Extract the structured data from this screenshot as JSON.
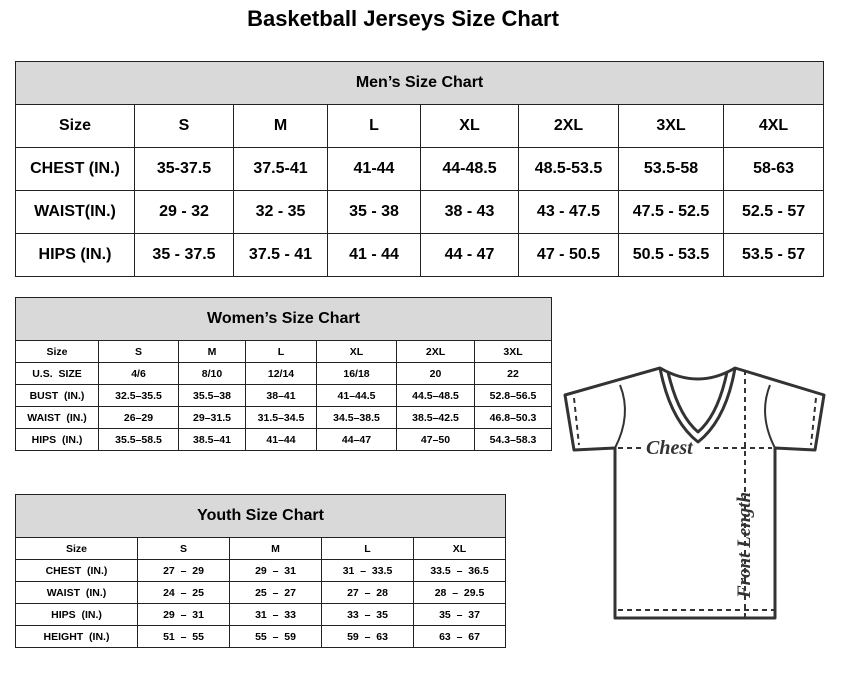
{
  "title": "Basketball Jerseys Size Chart",
  "men": {
    "title": "Men’s Size Chart",
    "rows": [
      [
        "Size",
        "S",
        "M",
        "L",
        "XL",
        "2XL",
        "3XL",
        "4XL"
      ],
      [
        "CHEST (IN.)",
        "35-37.5",
        "37.5-41",
        "41-44",
        "44-48.5",
        "48.5-53.5",
        "53.5-58",
        "58-63"
      ],
      [
        "WAIST(IN.)",
        "29 - 32",
        "32 - 35",
        "35 - 38",
        "38 - 43",
        "43 - 47.5",
        "47.5 - 52.5",
        "52.5 - 57"
      ],
      [
        "HIPS (IN.)",
        "35 - 37.5",
        "37.5 - 41",
        "41 - 44",
        "44 - 47",
        "47 - 50.5",
        "50.5 - 53.5",
        "53.5 - 57"
      ]
    ]
  },
  "women": {
    "title": "Women’s Size Chart",
    "rows": [
      [
        "Size",
        "S",
        "M",
        "L",
        "XL",
        "2XL",
        "3XL"
      ],
      [
        "U.S.  SIZE",
        "4/6",
        "8/10",
        "12/14",
        "16/18",
        "20",
        "22"
      ],
      [
        "BUST  (IN.)",
        "32.5–35.5",
        "35.5–38",
        "38–41",
        "41–44.5",
        "44.5–48.5",
        "52.8–56.5"
      ],
      [
        "WAIST  (IN.)",
        "26–29",
        "29–31.5",
        "31.5–34.5",
        "34.5–38.5",
        "38.5–42.5",
        "46.8–50.3"
      ],
      [
        "HIPS  (IN.)",
        "35.5–58.5",
        "38.5–41",
        "41–44",
        "44–47",
        "47–50",
        "54.3–58.3"
      ]
    ]
  },
  "youth": {
    "title": "Youth Size Chart",
    "rows": [
      [
        "Size",
        "S",
        "M",
        "L",
        "XL"
      ],
      [
        "CHEST  (IN.)",
        "27  –  29",
        "29  –  31",
        "31  –  33.5",
        "33.5  –  36.5"
      ],
      [
        "WAIST  (IN.)",
        "24  –  25",
        "25  –  27",
        "27  –  28",
        "28  –  29.5"
      ],
      [
        "HIPS  (IN.)",
        "29  –  31",
        "31  –  33",
        "33  –  35",
        "35  –  37"
      ],
      [
        "HEIGHT  (IN.)",
        "51  –  55",
        "55  –  59",
        "59  –  63",
        "63  –  67"
      ]
    ]
  },
  "diagram": {
    "chest_label": "Chest",
    "length_label": "Front Length"
  }
}
